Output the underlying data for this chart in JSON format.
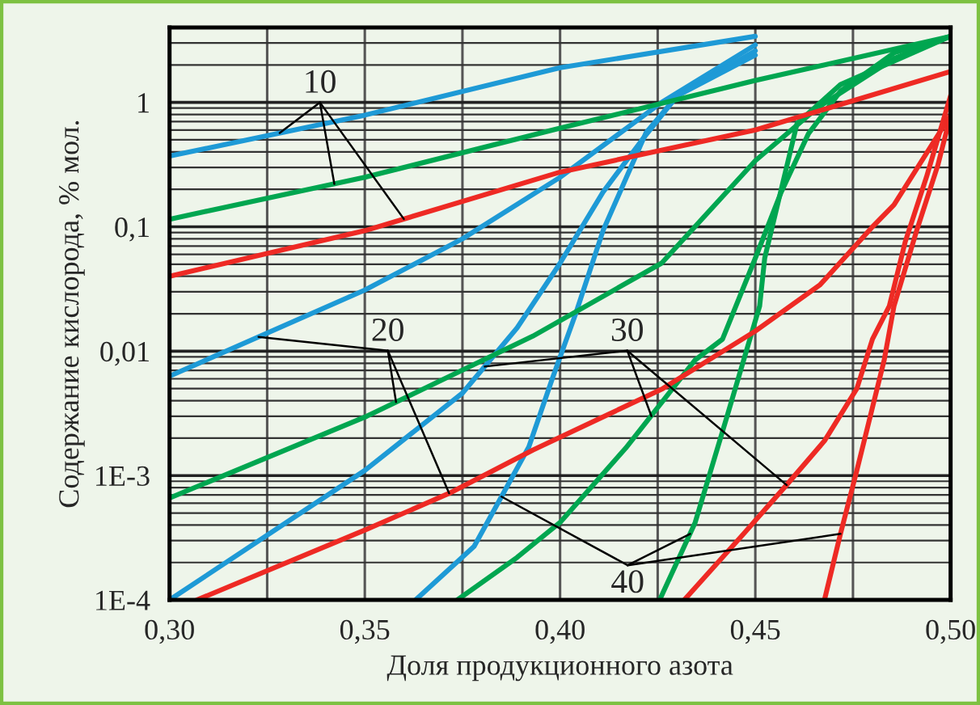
{
  "chart_data": {
    "type": "line",
    "xlabel": "Доля продукционного азота",
    "ylabel": "Содержание кислорода, % мол.",
    "annotations": [
      {
        "text": "10",
        "x": 0.3422,
        "y": 0.221
      },
      {
        "text": "20",
        "x": 0.358,
        "y": 0.0039
      },
      {
        "text": "30",
        "x": 0.4234,
        "y": 0.003
      },
      {
        "text": "40",
        "x": 0.4333,
        "y": 0.00034
      }
    ],
    "log": "y",
    "grid": true,
    "legend": false,
    "marker": "none",
    "line_style": "solid",
    "xlim": [
      0.3,
      0.5
    ],
    "xticks": [
      {
        "value": 0.3,
        "label": "0,30"
      },
      {
        "value": 0.325,
        "label": null
      },
      {
        "value": 0.35,
        "label": "0,35"
      },
      {
        "value": 0.375,
        "label": null
      },
      {
        "value": 0.4,
        "label": "0,40"
      },
      {
        "value": 0.425,
        "label": null
      },
      {
        "value": 0.45,
        "label": "0,45"
      },
      {
        "value": 0.475,
        "label": null
      },
      {
        "value": 0.5,
        "label": "0,50"
      }
    ],
    "ylim": [
      0.0001,
      4
    ],
    "yticks": [
      {
        "value": 0.0001,
        "label": "1E-4"
      },
      {
        "value": 0.001,
        "label": "1E-3"
      },
      {
        "value": 0.01,
        "label": "0,01"
      },
      {
        "value": 0.1,
        "label": "0,1"
      },
      {
        "value": 1,
        "label": "1"
      }
    ],
    "series": [
      {
        "color": "#1e9ad6",
        "x": [
          0.3,
          0.35,
          0.4,
          0.45
        ],
        "values": [
          0.37,
          0.79,
          1.9,
          3.4
        ]
      },
      {
        "color": "#1e9ad6",
        "x": [
          0.3,
          0.35,
          0.375,
          0.4,
          0.426,
          0.45
        ],
        "values": [
          0.0063,
          0.031,
          0.08,
          0.25,
          1.0,
          2.9
        ]
      },
      {
        "color": "#1e9ad6",
        "x": [
          0.3,
          0.35,
          0.375,
          0.389,
          0.4,
          0.411,
          0.421,
          0.43,
          0.45
        ],
        "values": [
          0.0001,
          0.0011,
          0.0046,
          0.0154,
          0.051,
          0.19,
          0.5,
          1.13,
          2.6
        ]
      },
      {
        "color": "#1e9ad6",
        "x": [
          0.363,
          0.378,
          0.392,
          0.398,
          0.404,
          0.411,
          0.417,
          0.422,
          0.43,
          0.45
        ],
        "values": [
          0.0001,
          0.00027,
          0.0017,
          0.006,
          0.02,
          0.093,
          0.25,
          0.57,
          1.13,
          2.4
        ]
      },
      {
        "color": "#00a650",
        "x": [
          0.3,
          0.35,
          0.4,
          0.45,
          0.5
        ],
        "values": [
          0.115,
          0.25,
          0.62,
          1.5,
          3.4
        ]
      },
      {
        "color": "#00a650",
        "x": [
          0.3,
          0.3505,
          0.393,
          0.426,
          0.45,
          0.466,
          0.4855,
          0.5
        ],
        "values": [
          0.00066,
          0.003,
          0.0132,
          0.051,
          0.34,
          0.91,
          2.25,
          3.4
        ]
      },
      {
        "color": "#00a650",
        "x": [
          0.3737,
          0.389,
          0.4,
          0.4168,
          0.4346,
          0.4416,
          0.45,
          0.4565,
          0.4636,
          0.4718,
          0.4855,
          0.5
        ],
        "values": [
          0.0001,
          0.00022,
          0.00042,
          0.00166,
          0.0085,
          0.0125,
          0.056,
          0.186,
          0.56,
          1.23,
          2.5,
          3.4
        ]
      },
      {
        "color": "#00a650",
        "x": [
          0.4255,
          0.4346,
          0.4429,
          0.4511,
          0.4524,
          0.4607,
          0.4718,
          0.5
        ],
        "values": [
          0.0001,
          0.00042,
          0.0031,
          0.023,
          0.056,
          0.68,
          1.39,
          3.4
        ]
      },
      {
        "color": "#ee2a24",
        "x": [
          0.3,
          0.35,
          0.4,
          0.45,
          0.5
        ],
        "values": [
          0.04,
          0.093,
          0.275,
          0.6,
          1.77
        ]
      },
      {
        "color": "#ee2a24",
        "x": [
          0.307,
          0.3505,
          0.3716,
          0.393,
          0.4263,
          0.45,
          0.4665,
          0.48,
          0.4855,
          0.5
        ],
        "values": [
          0.0001,
          0.00037,
          0.00072,
          0.0016,
          0.005,
          0.0145,
          0.034,
          0.1,
          0.15,
          0.79
        ]
      },
      {
        "color": "#ee2a24",
        "x": [
          0.4318,
          0.447,
          0.458,
          0.4677,
          0.476,
          0.48,
          0.4843,
          0.4884,
          0.4938,
          0.5
        ],
        "values": [
          0.0001,
          0.00034,
          0.00084,
          0.0019,
          0.005,
          0.0125,
          0.023,
          0.076,
          0.25,
          1.13
        ]
      },
      {
        "color": "#ee2a24",
        "x": [
          0.4677,
          0.4718,
          0.476,
          0.483,
          0.4855,
          0.4913,
          0.4967,
          0.5
        ],
        "values": [
          0.0001,
          0.00034,
          0.0011,
          0.0085,
          0.023,
          0.093,
          0.31,
          0.79
        ]
      }
    ]
  }
}
